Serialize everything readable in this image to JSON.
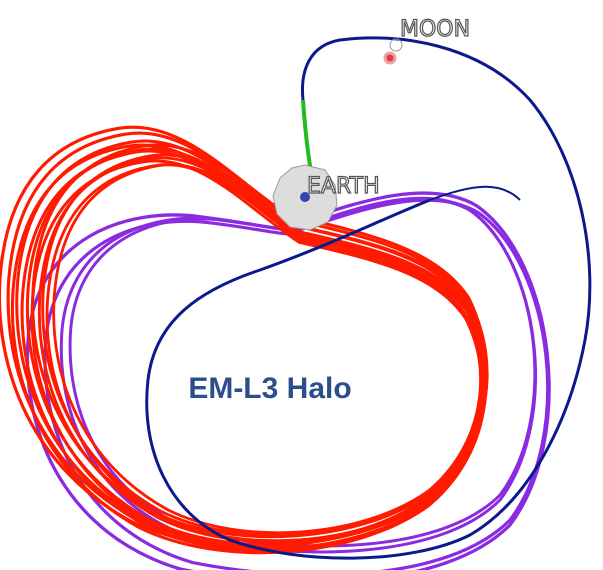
{
  "labels": {
    "moon": "MOON",
    "earth": "EARTH",
    "orbit": "EM-L3 Halo"
  }
}
